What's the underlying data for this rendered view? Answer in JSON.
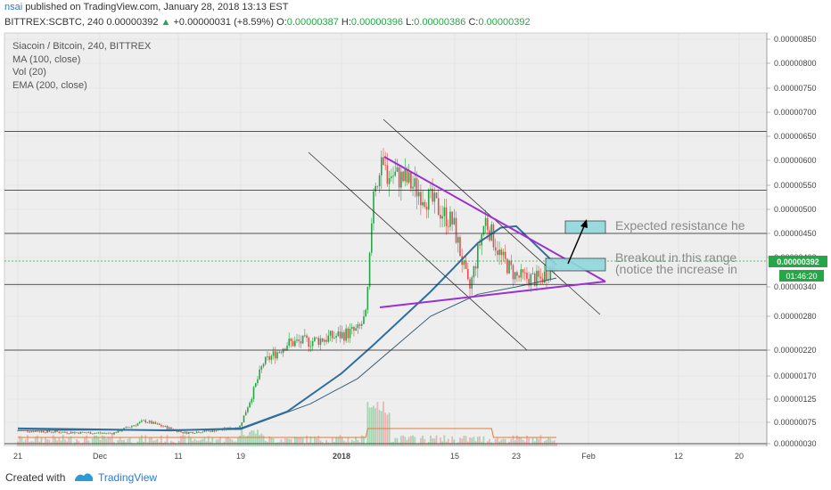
{
  "header": {
    "author": "nsai",
    "published": "published on TradingView.com, January 28, 2018 13:13 EST",
    "symbol_line": "BITTREX:SCBTC, 240",
    "last_price": "0.00000392",
    "up_arrow": "▲",
    "change": "+0.00000031 (+8.59%)",
    "o_label": "O:",
    "o_value": "0.00000387",
    "h_label": "H:",
    "h_value": "0.00000396",
    "l_label": "L:",
    "l_value": "0.00000386",
    "c_label": "C:",
    "c_value": "0.00000392"
  },
  "legend": {
    "title": "Siacoin / Bitcoin, 240, BITTREX",
    "ma": "MA (100, close)",
    "vol": "Vol (20)",
    "ema": "EMA (200, close)"
  },
  "annotations": {
    "resistance": "Expected resistance he",
    "breakout1": "Breakout in this range",
    "breakout2": "(notice the increase in"
  },
  "price_tag": {
    "price": "0.00000392",
    "countdown": "01:46:20",
    "color": "#26a646"
  },
  "footer": {
    "created_with": "Created with",
    "brand": "TradingView"
  },
  "colors": {
    "up": "#26a646",
    "down": "#e05050",
    "ma": "#2f6fa0",
    "ema": "#3b5f7a",
    "trend": "#9b30d0",
    "box": "#8fd8dc"
  },
  "chart_data": {
    "type": "line",
    "title": "Siacoin / Bitcoin, 240, BITTREX",
    "y_tick_labels": [
      "0.00000850",
      "0.00000800",
      "0.00000750",
      "0.00000700",
      "0.00000650",
      "0.00000600",
      "0.00000550",
      "0.00000500",
      "0.00000450",
      "0.00000400",
      "0.00000340",
      "0.00000280",
      "0.00000220",
      "0.00000170",
      "0.00000125",
      "0.00000075",
      "0.00000030"
    ],
    "x_tick_labels": [
      "21",
      "Dec",
      "11",
      "19",
      "2018",
      "15",
      "23",
      "Feb",
      "12",
      "20"
    ],
    "series": [
      {
        "name": "price",
        "x": [
          "Nov 21",
          "Nov 27",
          "Dec 3",
          "Dec 7",
          "Dec 12",
          "Dec 16",
          "Dec 19",
          "Dec 22",
          "Dec 25",
          "Dec 28",
          "Dec 31",
          "Jan 3",
          "Jan 4",
          "Jan 5",
          "Jan 6",
          "Jan 9",
          "Jan 12",
          "Jan 15",
          "Jan 17",
          "Jan 19",
          "Jan 21",
          "Jan 23",
          "Jan 26",
          "Jan 28"
        ],
        "values": [
          5.8e-07,
          5.4e-07,
          5.2e-07,
          7.8e-07,
          5.3e-07,
          5.8e-07,
          6.5e-07,
          1.95e-06,
          2.32e-06,
          2.36e-06,
          2.44e-06,
          2.55e-06,
          2.82e-06,
          5.6e-06,
          5.8e-06,
          5.6e-06,
          5.2e-06,
          4.7e-06,
          3.3e-06,
          4.8e-06,
          4e-06,
          3.6e-06,
          3.55e-06,
          3.92e-06
        ]
      },
      {
        "name": "MA (100, close)",
        "x": [
          "Nov 21",
          "Dec 10",
          "Dec 19",
          "Dec 25",
          "Jan 1",
          "Jan 5",
          "Jan 12",
          "Jan 18",
          "Jan 21",
          "Jan 23",
          "Jan 28"
        ],
        "values": [
          6.2e-07,
          5.8e-07,
          6.2e-07,
          9.8e-07,
          1.75e-06,
          2.3e-06,
          3.3e-06,
          4.3e-06,
          4.62e-06,
          4.65e-06,
          3.85e-06
        ]
      },
      {
        "name": "EMA (200, close)",
        "x": [
          "Nov 21",
          "Dec 19",
          "Dec 28",
          "Jan 3",
          "Jan 12",
          "Jan 18",
          "Jan 23",
          "Jan 28"
        ],
        "values": [
          5.8e-07,
          6e-07,
          1.15e-06,
          1.65e-06,
          2.8e-06,
          3.25e-06,
          3.4e-06,
          3.58e-06
        ]
      }
    ],
    "horizontal_levels": [
      6.6e-06,
      5.4e-06,
      4.5e-06,
      3.45e-06,
      2.2e-06,
      3e-07
    ],
    "grid": true,
    "legend_position": "top-left"
  }
}
